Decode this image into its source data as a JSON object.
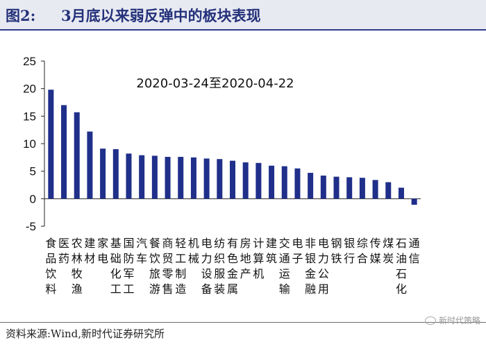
{
  "header": {
    "label": "图2:",
    "title": "3月底以来弱反弹中的板块表现"
  },
  "colors": {
    "bar": "#1f2f8a",
    "axis": "#222222"
  },
  "chart_data": {
    "type": "bar",
    "annotation": "2020-03-24至2020-04-22",
    "categories": [
      "食品饮料",
      "医药",
      "农林牧渔",
      "建材",
      "家电",
      "基础化工",
      "国防军工",
      "汽车",
      "餐饮旅游",
      "商贸零售",
      "轻工制造",
      "机械",
      "电力设备",
      "纺织服装",
      "有色金属",
      "房地产",
      "计算机",
      "建筑",
      "交通运输",
      "电子",
      "非银金融",
      "电力公用",
      "钢铁",
      "银行",
      "综合",
      "传媒",
      "煤炭",
      "石油石化",
      "通信"
    ],
    "values": [
      19.8,
      17.0,
      15.7,
      12.2,
      9.1,
      9.0,
      8.2,
      7.9,
      7.8,
      7.6,
      7.6,
      7.5,
      7.3,
      7.2,
      6.9,
      6.6,
      6.5,
      6.0,
      5.9,
      5.5,
      4.7,
      4.2,
      4.0,
      3.9,
      3.8,
      3.4,
      3.0,
      2.0,
      -1.1
    ],
    "yticks": [
      25,
      20,
      15,
      10,
      5,
      0,
      -5
    ],
    "ylim": [
      -5,
      25
    ]
  },
  "footer": {
    "source": "资料来源:Wind,新时代证券研究所",
    "watermark": "新时代策略"
  }
}
